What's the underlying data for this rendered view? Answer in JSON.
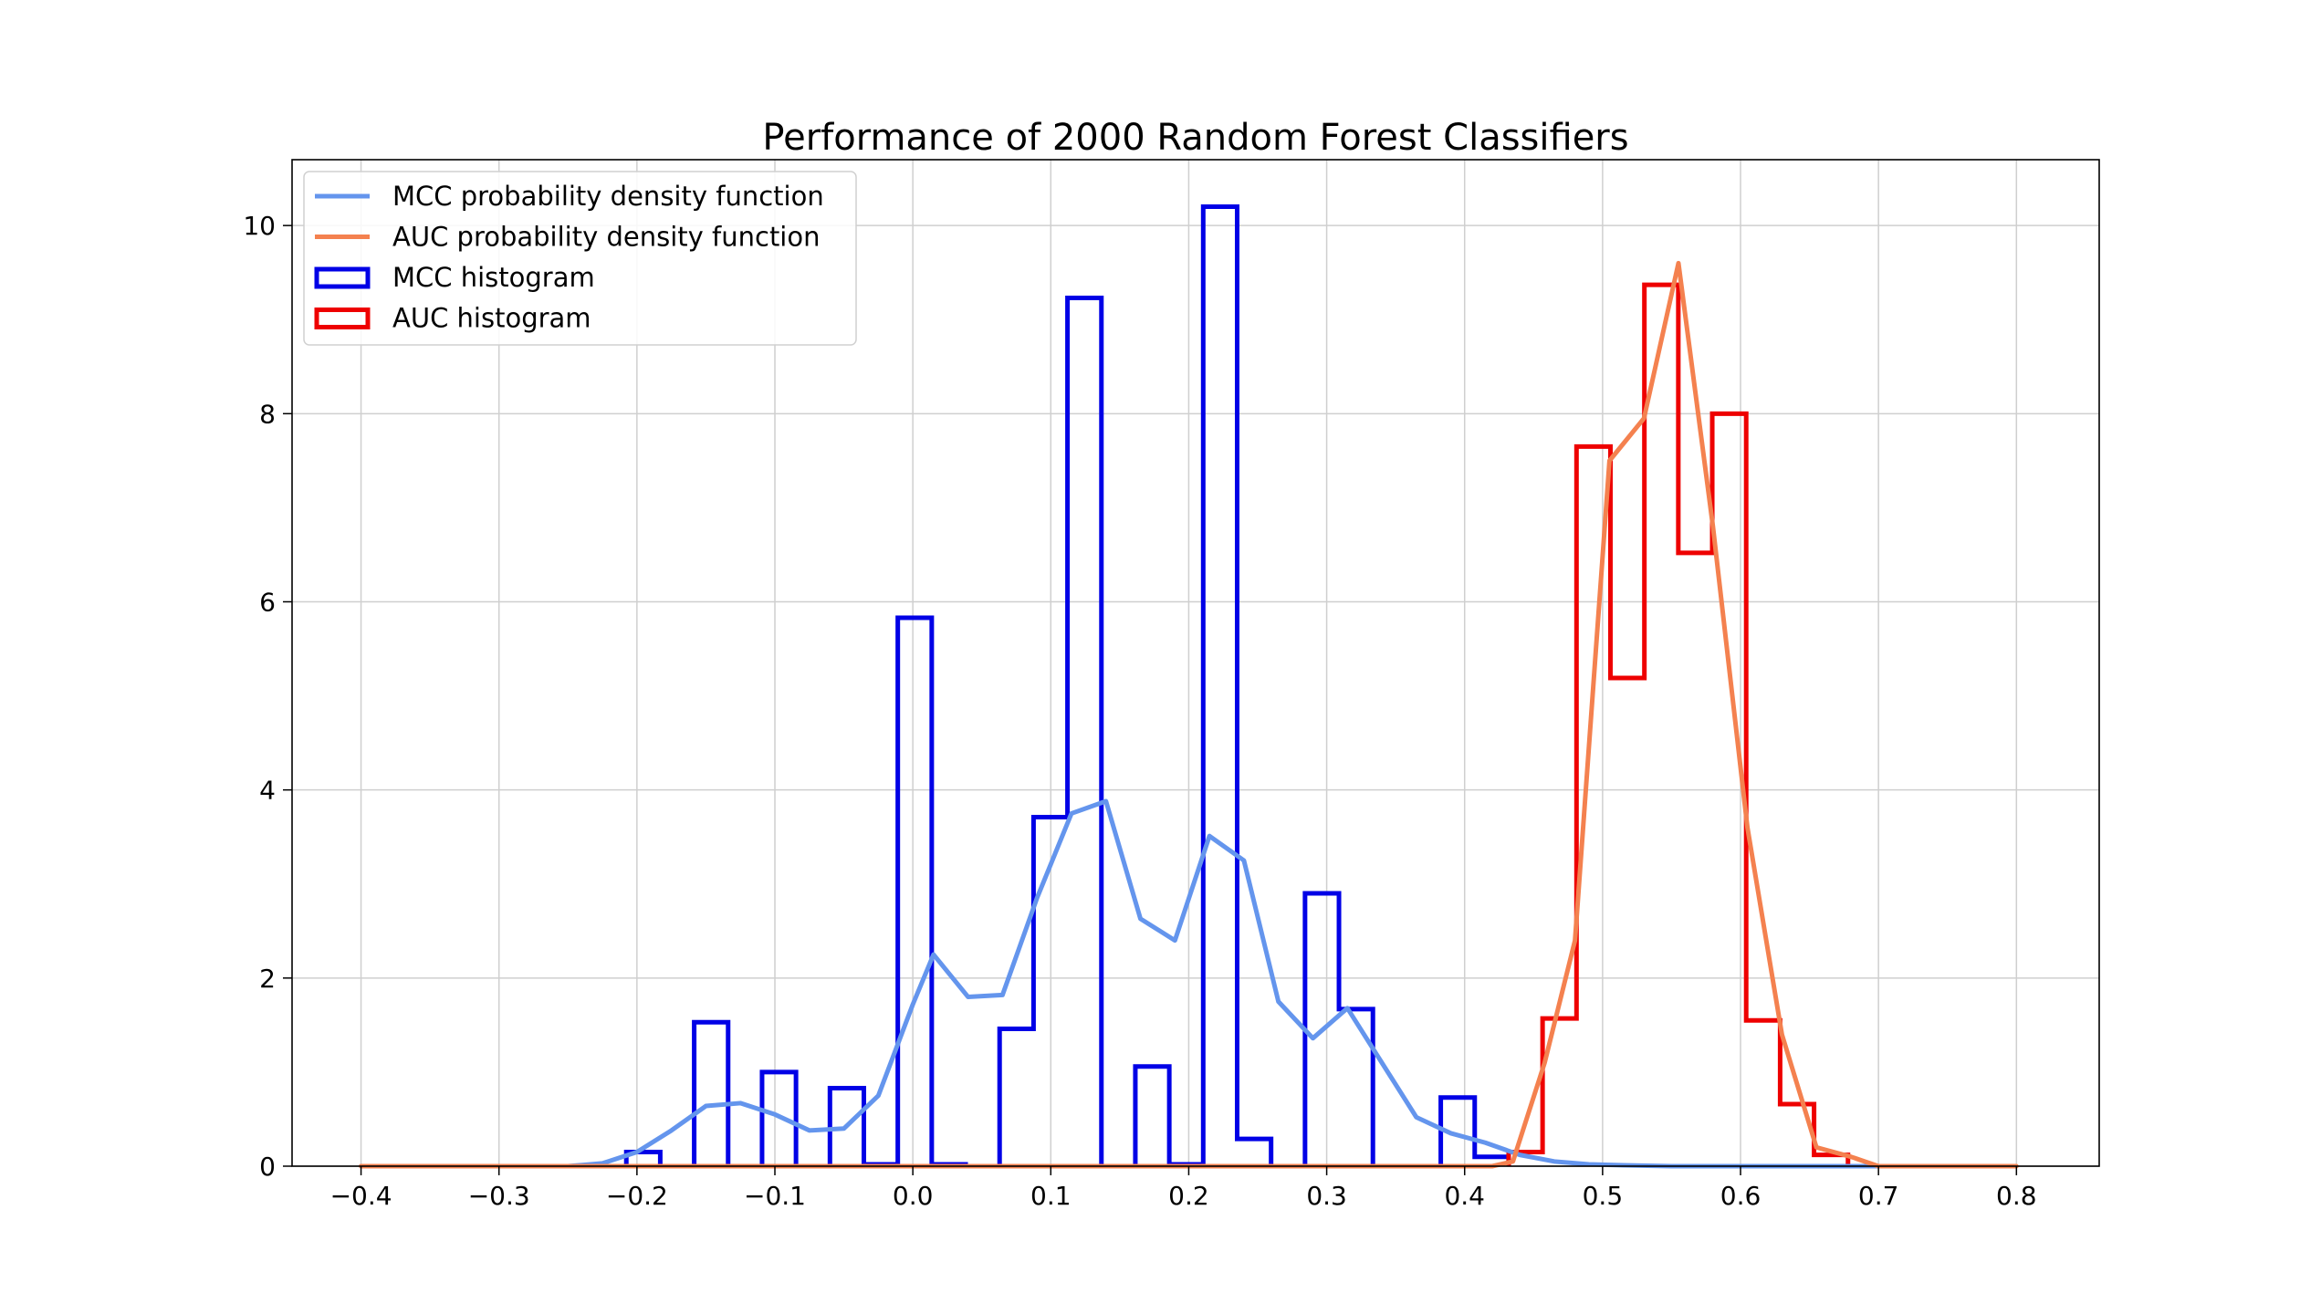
{
  "chart_data": {
    "type": "histogram",
    "title": "Performance of 2000 Random Forest Classifiers",
    "xlabel": "",
    "ylabel": "",
    "xlim": [
      -0.45,
      0.86
    ],
    "ylim": [
      0,
      10.7
    ],
    "xticks": [
      -0.4,
      -0.3,
      -0.2,
      -0.1,
      0.0,
      0.1,
      0.2,
      0.3,
      0.4,
      0.5,
      0.6,
      0.7,
      0.8
    ],
    "xtick_labels": [
      "−0.4",
      "−0.3",
      "−0.2",
      "−0.1",
      "0.0",
      "0.1",
      "0.2",
      "0.3",
      "0.4",
      "0.5",
      "0.6",
      "0.7",
      "0.8"
    ],
    "yticks": [
      0,
      2,
      4,
      6,
      8,
      10
    ],
    "ytick_labels": [
      "0",
      "2",
      "4",
      "6",
      "8",
      "10"
    ],
    "grid": true,
    "legend_position": "top-left",
    "legend": [
      {
        "label": "MCC probability density function",
        "kind": "line",
        "color": "#6495ED"
      },
      {
        "label": "AUC probability density function",
        "kind": "line",
        "color": "#F4814F"
      },
      {
        "label": "MCC histogram",
        "kind": "box",
        "color": "#0000E6"
      },
      {
        "label": "AUC histogram",
        "kind": "box",
        "color": "#EE0000"
      }
    ],
    "histograms": [
      {
        "name": "MCC histogram",
        "color": "#0000E6",
        "bin_edges": [
          -0.2077,
          -0.1831,
          -0.1585,
          -0.1339,
          -0.1093,
          -0.0847,
          -0.0601,
          -0.0355,
          -0.0109,
          0.0137,
          0.0383,
          0.0629,
          0.0875,
          0.1121,
          0.1367,
          0.1613,
          0.1859,
          0.2105,
          0.2351,
          0.2597,
          0.2843,
          0.3089,
          0.3335,
          0.3581,
          0.3827,
          0.4073,
          0.4319
        ],
        "values": [
          0.15,
          0,
          1.53,
          0,
          1.0,
          0,
          0.83,
          0.02,
          5.83,
          0.02,
          0,
          1.46,
          3.71,
          9.23,
          0,
          1.06,
          0.02,
          10.2,
          0.29,
          0,
          2.9,
          1.67,
          0,
          0,
          0.73,
          0.1
        ]
      },
      {
        "name": "AUC histogram",
        "color": "#EE0000",
        "bin_edges": [
          0.4319,
          0.4565,
          0.4811,
          0.5057,
          0.5303,
          0.5549,
          0.5795,
          0.6041,
          0.6287,
          0.6533,
          0.6779
        ],
        "values": [
          0.15,
          1.57,
          7.65,
          5.19,
          9.37,
          6.52,
          8.0,
          1.55,
          0.66,
          0.12
        ]
      }
    ],
    "series": [
      {
        "name": "MCC probability density function",
        "color": "#6495ED",
        "x": [
          -0.4,
          -0.25,
          -0.225,
          -0.2,
          -0.175,
          -0.15,
          -0.125,
          -0.1,
          -0.075,
          -0.05,
          -0.025,
          0.0,
          0.015,
          0.04,
          0.065,
          0.09,
          0.115,
          0.14,
          0.165,
          0.19,
          0.215,
          0.24,
          0.265,
          0.29,
          0.315,
          0.34,
          0.365,
          0.39,
          0.415,
          0.44,
          0.465,
          0.49,
          0.515,
          0.55,
          0.7
        ],
        "y": [
          0,
          0,
          0.03,
          0.15,
          0.38,
          0.64,
          0.67,
          0.55,
          0.38,
          0.4,
          0.75,
          1.72,
          2.25,
          1.8,
          1.82,
          2.85,
          3.75,
          3.88,
          2.63,
          2.4,
          3.51,
          3.25,
          1.75,
          1.36,
          1.68,
          1.1,
          0.52,
          0.35,
          0.25,
          0.12,
          0.05,
          0.02,
          0.01,
          0,
          0
        ]
      },
      {
        "name": "AUC probability density function",
        "color": "#F4814F",
        "x": [
          -0.4,
          0.42,
          0.435,
          0.458,
          0.48,
          0.505,
          0.53,
          0.555,
          0.58,
          0.605,
          0.63,
          0.655,
          0.68,
          0.7,
          0.8
        ],
        "y": [
          0,
          0,
          0.05,
          1.1,
          2.4,
          7.5,
          7.95,
          9.6,
          6.8,
          3.6,
          1.4,
          0.2,
          0.1,
          0,
          0
        ]
      }
    ]
  }
}
